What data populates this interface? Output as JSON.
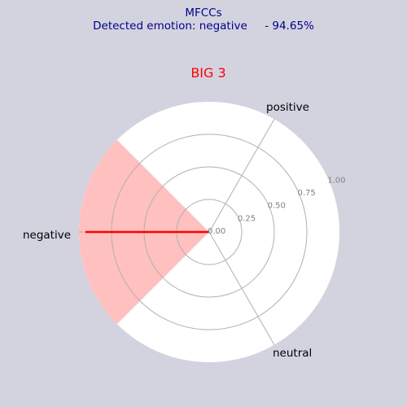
{
  "figure": {
    "title": "MFCCs",
    "subtitle": "Detected emotion: negative     - 94.65%"
  },
  "chart_data": {
    "type": "radar",
    "title": "BIG 3",
    "categories": [
      "positive",
      "negative",
      "neutral"
    ],
    "category_angles_deg": [
      60,
      180,
      300
    ],
    "values": [
      0.0,
      0.95,
      0.0
    ],
    "radial_ticks": [
      "0.00",
      "0.25",
      "0.50",
      "0.75",
      "1.00"
    ],
    "radial_tick_values": [
      0.0,
      0.25,
      0.5,
      0.75,
      1.0
    ],
    "rlim": [
      0,
      1.0
    ],
    "highlight_sector": {
      "category": "negative",
      "from_deg": 135,
      "to_deg": 225
    },
    "grid": true
  },
  "colors": {
    "background": "#d3d3e0",
    "plot_area": "#ffffff",
    "header_text": "#00008b",
    "chart_title": "#ff0000",
    "sector_fill": "#ffc0c0",
    "series_line": "#ff0000",
    "series_fill": "#ffc0c0",
    "grid": "#b0b0b0",
    "tick_text": "#808080"
  }
}
